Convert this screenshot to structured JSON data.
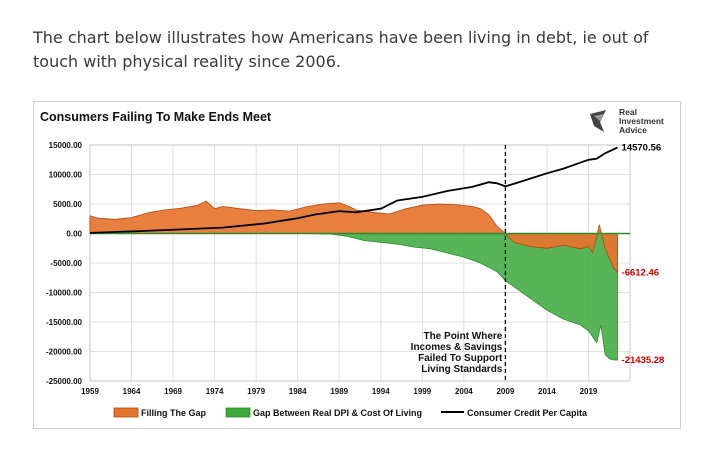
{
  "intro_text": "The chart below illustrates how Americans have been living in debt, ie out of touch with physical reality since 2006.",
  "logo": {
    "line1": "Real",
    "line2": "Investment",
    "line3": "Advice"
  },
  "colors": {
    "filling_gap": "#e6742f",
    "gap_dpi": "#3aa83a",
    "credit": "#000000",
    "end_label_red": "#cc0000"
  },
  "chart_data": {
    "type": "area",
    "title": "Consumers Failing To Make Ends Meet",
    "ylim": [
      -25000,
      15000
    ],
    "xlim": [
      1959,
      2024
    ],
    "y_ticks": [
      "15000.00",
      "10000.00",
      "5000.00",
      "0.00",
      "-5000.00",
      "-10000.00",
      "-15000.00",
      "-20000.00",
      "-25000.00"
    ],
    "x_ticks": [
      "1959",
      "1964",
      "1969",
      "1974",
      "1979",
      "1984",
      "1989",
      "1994",
      "1999",
      "2004",
      "2009",
      "2014",
      "2019"
    ],
    "grid": true,
    "legend_position": "bottom",
    "series": [
      {
        "name": "Filling The Gap",
        "type": "area",
        "x": [
          1959,
          1960,
          1962,
          1964,
          1966,
          1968,
          1970,
          1972,
          1973,
          1974,
          1975,
          1977,
          1979,
          1981,
          1983,
          1985,
          1987,
          1989,
          1990,
          1991,
          1993,
          1995,
          1997,
          1999,
          2001,
          2003,
          2005,
          2006,
          2007,
          2008,
          2009,
          2010,
          2012,
          2014,
          2016,
          2018,
          2019,
          2019.5,
          2020,
          2020.3,
          2021,
          2022,
          2022.5
        ],
        "values": [
          3000,
          2600,
          2400,
          2700,
          3500,
          4000,
          4300,
          4800,
          5500,
          4200,
          4600,
          4200,
          3900,
          4000,
          3800,
          4500,
          5000,
          5200,
          4700,
          4000,
          3600,
          3300,
          4200,
          4800,
          5000,
          4900,
          4600,
          4200,
          3200,
          1200,
          0,
          -1500,
          -2200,
          -2500,
          -2000,
          -2600,
          -2200,
          -3200,
          -500,
          1500,
          -2600,
          -5800,
          -6612.46
        ]
      },
      {
        "name": "Gap Between Real DPI & Cost Of Living",
        "type": "area",
        "x": [
          1959,
          1985,
          1988,
          1990,
          1992,
          1994,
          1996,
          1998,
          2000,
          2002,
          2004,
          2006,
          2008,
          2009,
          2010,
          2012,
          2014,
          2016,
          2018,
          2019,
          2020,
          2020.5,
          2021,
          2021.5,
          2022,
          2022.5
        ],
        "values": [
          0,
          0,
          -100,
          -500,
          -1200,
          -1500,
          -1800,
          -2300,
          -2600,
          -3300,
          -4000,
          -5000,
          -6500,
          -8000,
          -9000,
          -11000,
          -13000,
          -14500,
          -15500,
          -16500,
          -18500,
          -15500,
          -20500,
          -21200,
          -21435.28,
          -21435.28
        ]
      },
      {
        "name": "Consumer Credit Per Capita",
        "type": "line",
        "x": [
          1959,
          1965,
          1970,
          1975,
          1980,
          1984,
          1986,
          1989,
          1991,
          1994,
          1996,
          1999,
          2002,
          2005,
          2007,
          2008,
          2009,
          2010,
          2012,
          2014,
          2016,
          2018,
          2019,
          2020,
          2021,
          2022.5
        ],
        "values": [
          100,
          400,
          700,
          1000,
          1700,
          2600,
          3200,
          3800,
          3600,
          4200,
          5600,
          6200,
          7200,
          7900,
          8700,
          8500,
          8000,
          8400,
          9300,
          10200,
          11000,
          12000,
          12500,
          12700,
          13600,
          14570.56
        ]
      }
    ],
    "end_labels": {
      "credit": "14570.56",
      "filling_gap": "-6612.46",
      "gap_dpi": "-21435.28"
    },
    "annotation": {
      "x": 2009,
      "lines": [
        "The Point Where",
        "Incomes & Savings",
        "Failed To Support",
        "Living Standards"
      ]
    }
  }
}
